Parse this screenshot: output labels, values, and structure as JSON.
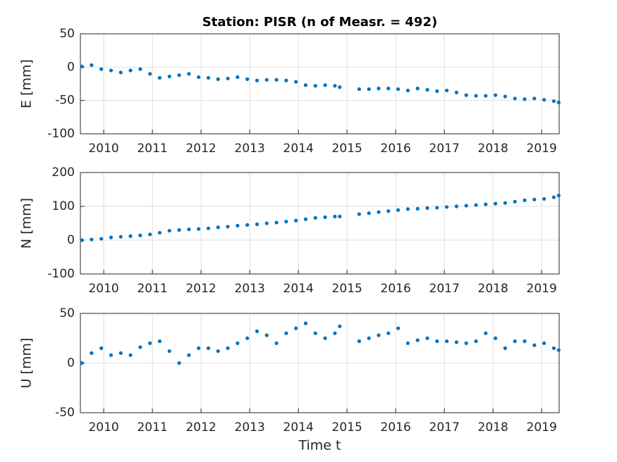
{
  "chart_data": [
    {
      "type": "scatter",
      "title": "Station: PISR (n of Measr. = 492)",
      "ylabel": "E [mm]",
      "color": "#0072bd",
      "grid": true,
      "xlim": [
        2009.52,
        2019.36
      ],
      "xticks": [
        2010,
        2011,
        2012,
        2013,
        2014,
        2015,
        2016,
        2017,
        2018,
        2019
      ],
      "ylim": [
        -100,
        50
      ],
      "yticks": [
        -100,
        -50,
        0,
        50
      ],
      "x": [
        2009.55,
        2009.75,
        2009.95,
        2010.15,
        2010.35,
        2010.55,
        2010.75,
        2010.95,
        2011.15,
        2011.35,
        2011.55,
        2011.75,
        2011.95,
        2012.15,
        2012.35,
        2012.55,
        2012.75,
        2012.95,
        2013.15,
        2013.35,
        2013.55,
        2013.75,
        2013.95,
        2014.15,
        2014.35,
        2014.55,
        2014.75,
        2014.85,
        2015.25,
        2015.45,
        2015.65,
        2015.85,
        2016.05,
        2016.25,
        2016.45,
        2016.65,
        2016.85,
        2017.05,
        2017.25,
        2017.45,
        2017.65,
        2017.85,
        2018.05,
        2018.25,
        2018.45,
        2018.65,
        2018.85,
        2019.05,
        2019.25,
        2019.35
      ],
      "values": [
        1,
        3,
        -3,
        -5,
        -8,
        -5,
        -3,
        -10,
        -16,
        -14,
        -12,
        -10,
        -15,
        -16,
        -18,
        -17,
        -15,
        -18,
        -20,
        -19,
        -19,
        -20,
        -22,
        -27,
        -28,
        -27,
        -28,
        -30,
        -33,
        -33,
        -32,
        -32,
        -33,
        -35,
        -32,
        -34,
        -36,
        -35,
        -38,
        -42,
        -43,
        -43,
        -42,
        -44,
        -47,
        -48,
        -47,
        -49,
        -51,
        -53
      ]
    },
    {
      "type": "scatter",
      "ylabel": "N [mm]",
      "color": "#0072bd",
      "grid": true,
      "xlim": [
        2009.52,
        2019.36
      ],
      "xticks": [
        2010,
        2011,
        2012,
        2013,
        2014,
        2015,
        2016,
        2017,
        2018,
        2019
      ],
      "ylim": [
        -100,
        200
      ],
      "yticks": [
        -100,
        0,
        100,
        200
      ],
      "x": [
        2009.55,
        2009.75,
        2009.95,
        2010.15,
        2010.35,
        2010.55,
        2010.75,
        2010.95,
        2011.15,
        2011.35,
        2011.55,
        2011.75,
        2011.95,
        2012.15,
        2012.35,
        2012.55,
        2012.75,
        2012.95,
        2013.15,
        2013.35,
        2013.55,
        2013.75,
        2013.95,
        2014.15,
        2014.35,
        2014.55,
        2014.75,
        2014.85,
        2015.25,
        2015.45,
        2015.65,
        2015.85,
        2016.05,
        2016.25,
        2016.45,
        2016.65,
        2016.85,
        2017.05,
        2017.25,
        2017.45,
        2017.65,
        2017.85,
        2018.05,
        2018.25,
        2018.45,
        2018.65,
        2018.85,
        2019.05,
        2019.25,
        2019.35
      ],
      "values": [
        0,
        2,
        4,
        8,
        10,
        12,
        14,
        17,
        22,
        28,
        30,
        32,
        33,
        35,
        38,
        40,
        43,
        45,
        47,
        50,
        52,
        55,
        58,
        62,
        66,
        68,
        70,
        70,
        77,
        80,
        83,
        86,
        89,
        92,
        93,
        95,
        96,
        98,
        100,
        102,
        104,
        106,
        108,
        110,
        114,
        118,
        120,
        122,
        127,
        132
      ]
    },
    {
      "type": "scatter",
      "ylabel": "U [mm]",
      "xlabel": "Time t",
      "color": "#0072bd",
      "grid": true,
      "xlim": [
        2009.52,
        2019.36
      ],
      "xticks": [
        2010,
        2011,
        2012,
        2013,
        2014,
        2015,
        2016,
        2017,
        2018,
        2019
      ],
      "ylim": [
        -50,
        50
      ],
      "yticks": [
        -50,
        0,
        50
      ],
      "x": [
        2009.55,
        2009.75,
        2009.95,
        2010.15,
        2010.35,
        2010.55,
        2010.75,
        2010.95,
        2011.15,
        2011.35,
        2011.55,
        2011.75,
        2011.95,
        2012.15,
        2012.35,
        2012.55,
        2012.75,
        2012.95,
        2013.15,
        2013.35,
        2013.55,
        2013.75,
        2013.95,
        2014.15,
        2014.35,
        2014.55,
        2014.75,
        2014.85,
        2015.25,
        2015.45,
        2015.65,
        2015.85,
        2016.05,
        2016.25,
        2016.45,
        2016.65,
        2016.85,
        2017.05,
        2017.25,
        2017.45,
        2017.65,
        2017.85,
        2018.05,
        2018.25,
        2018.45,
        2018.65,
        2018.85,
        2019.05,
        2019.25,
        2019.35
      ],
      "values": [
        0,
        10,
        15,
        8,
        10,
        8,
        16,
        20,
        22,
        12,
        0,
        8,
        15,
        15,
        12,
        15,
        20,
        25,
        32,
        28,
        20,
        30,
        35,
        40,
        30,
        25,
        30,
        37,
        22,
        25,
        28,
        30,
        35,
        20,
        23,
        25,
        22,
        22,
        21,
        20,
        22,
        30,
        25,
        15,
        22,
        22,
        18,
        20,
        15,
        13
      ]
    }
  ]
}
